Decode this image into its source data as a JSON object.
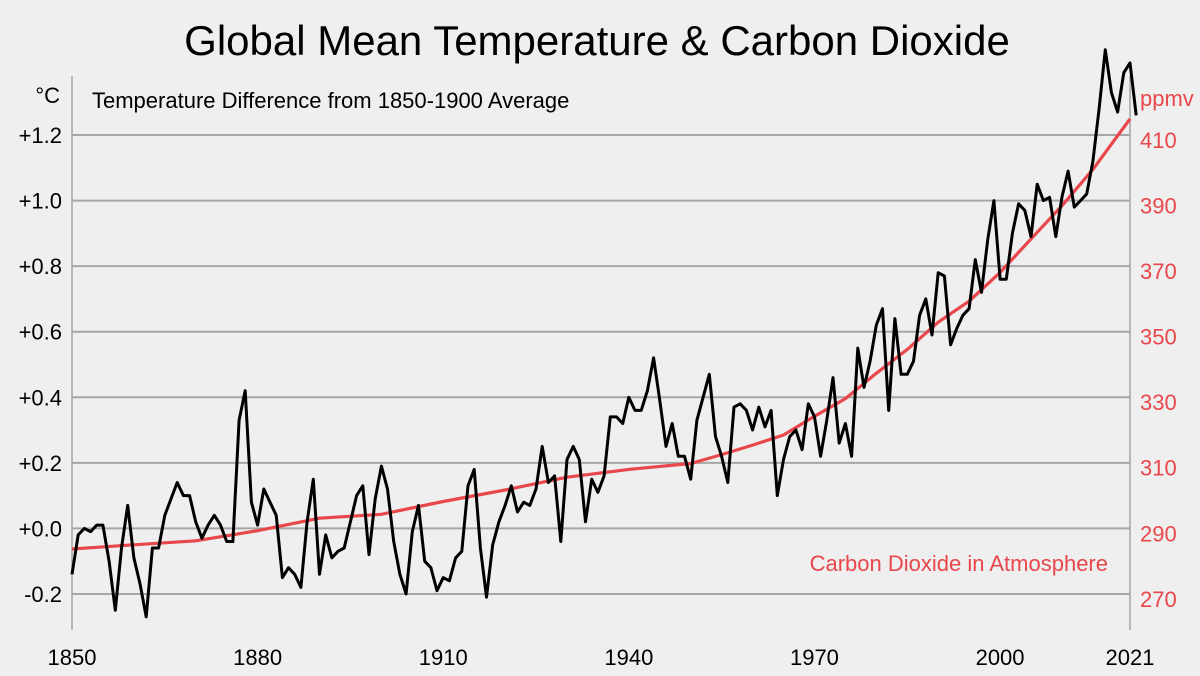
{
  "chart_data": {
    "type": "line",
    "title": "Global Mean Temperature & Carbon Dioxide",
    "subtitle": "Temperature Difference from 1850-1900 Average",
    "y_left_unit": "°C",
    "y_right_unit": "ppmv",
    "x_range": [
      1850,
      2021
    ],
    "ylim_left": [
      -0.31,
      1.38
    ],
    "ylim_right": [
      260.5,
      429.5
    ],
    "x_ticks": [
      1850,
      1880,
      1910,
      1940,
      1970,
      2000,
      2021
    ],
    "y_left_ticks": [
      {
        "value": 1.2,
        "label": "+1.2"
      },
      {
        "value": 1.0,
        "label": "+1.0"
      },
      {
        "value": 0.8,
        "label": "+0.8"
      },
      {
        "value": 0.6,
        "label": "+0.6"
      },
      {
        "value": 0.4,
        "label": "+0.4"
      },
      {
        "value": 0.2,
        "label": "+0.2"
      },
      {
        "value": 0.0,
        "label": "+0.0"
      },
      {
        "value": -0.2,
        "label": "-0.2"
      }
    ],
    "y_right_ticks": [
      410,
      390,
      370,
      350,
      330,
      310,
      290,
      270
    ],
    "co2_label": "Carbon Dioxide in Atmosphere",
    "colors": {
      "temperature": "#000000",
      "co2": "#e8474b",
      "grid": "#a6a6a6",
      "background": "#efefef"
    },
    "series": [
      {
        "name": "Temperature",
        "axis": "left",
        "x_start": 1850,
        "values": [
          -0.14,
          -0.02,
          0.0,
          -0.01,
          0.01,
          0.01,
          -0.1,
          -0.25,
          -0.06,
          0.07,
          -0.09,
          -0.17,
          -0.27,
          -0.06,
          -0.06,
          0.04,
          0.09,
          0.14,
          0.1,
          0.1,
          0.02,
          -0.03,
          0.01,
          0.04,
          0.01,
          -0.04,
          -0.04,
          0.33,
          0.42,
          0.08,
          0.01,
          0.12,
          0.08,
          0.04,
          -0.15,
          -0.12,
          -0.14,
          -0.18,
          0.02,
          0.15,
          -0.14,
          -0.02,
          -0.09,
          -0.07,
          -0.06,
          0.02,
          0.1,
          0.13,
          -0.08,
          0.09,
          0.19,
          0.12,
          -0.04,
          -0.14,
          -0.2,
          -0.01,
          0.07,
          -0.1,
          -0.12,
          -0.19,
          -0.15,
          -0.16,
          -0.09,
          -0.07,
          0.13,
          0.18,
          -0.06,
          -0.21,
          -0.05,
          0.02,
          0.07,
          0.13,
          0.05,
          0.08,
          0.07,
          0.12,
          0.25,
          0.14,
          0.16,
          -0.04,
          0.21,
          0.25,
          0.21,
          0.02,
          0.15,
          0.11,
          0.16,
          0.34,
          0.34,
          0.32,
          0.4,
          0.36,
          0.36,
          0.42,
          0.52,
          0.39,
          0.25,
          0.32,
          0.22,
          0.22,
          0.15,
          0.33,
          0.4,
          0.47,
          0.28,
          0.22,
          0.14,
          0.37,
          0.38,
          0.36,
          0.3,
          0.37,
          0.31,
          0.36,
          0.1,
          0.21,
          0.28,
          0.3,
          0.24,
          0.38,
          0.34,
          0.22,
          0.33,
          0.46,
          0.26,
          0.32,
          0.22,
          0.55,
          0.43,
          0.51,
          0.62,
          0.67,
          0.36,
          0.64,
          0.47,
          0.47,
          0.51,
          0.65,
          0.7,
          0.59,
          0.78,
          0.77,
          0.56,
          0.61,
          0.65,
          0.67,
          0.82,
          0.72,
          0.88,
          1.0,
          0.76,
          0.76,
          0.9,
          0.99,
          0.97,
          0.89,
          1.05,
          1.0,
          1.01,
          0.89,
          1.01,
          1.09,
          0.98,
          1.0,
          1.02,
          1.12,
          1.28,
          1.46,
          1.33,
          1.27,
          1.39,
          1.42,
          1.26
        ]
      },
      {
        "name": "Carbon Dioxide",
        "axis": "right",
        "points": [
          [
            1850,
            285.2
          ],
          [
            1860,
            286.5
          ],
          [
            1870,
            287.7
          ],
          [
            1880,
            290.8
          ],
          [
            1890,
            294.6
          ],
          [
            1900,
            295.8
          ],
          [
            1910,
            299.7
          ],
          [
            1920,
            303.2
          ],
          [
            1930,
            307.1
          ],
          [
            1940,
            309.5
          ],
          [
            1950,
            311.3
          ],
          [
            1955,
            314.0
          ],
          [
            1960,
            316.9
          ],
          [
            1965,
            320.0
          ],
          [
            1970,
            325.7
          ],
          [
            1975,
            331.1
          ],
          [
            1980,
            338.8
          ],
          [
            1985,
            346.1
          ],
          [
            1990,
            354.4
          ],
          [
            1995,
            360.8
          ],
          [
            2000,
            369.6
          ],
          [
            2005,
            379.8
          ],
          [
            2010,
            389.9
          ],
          [
            2015,
            401.0
          ],
          [
            2018,
            408.7
          ],
          [
            2021,
            416.4
          ]
        ]
      }
    ]
  }
}
